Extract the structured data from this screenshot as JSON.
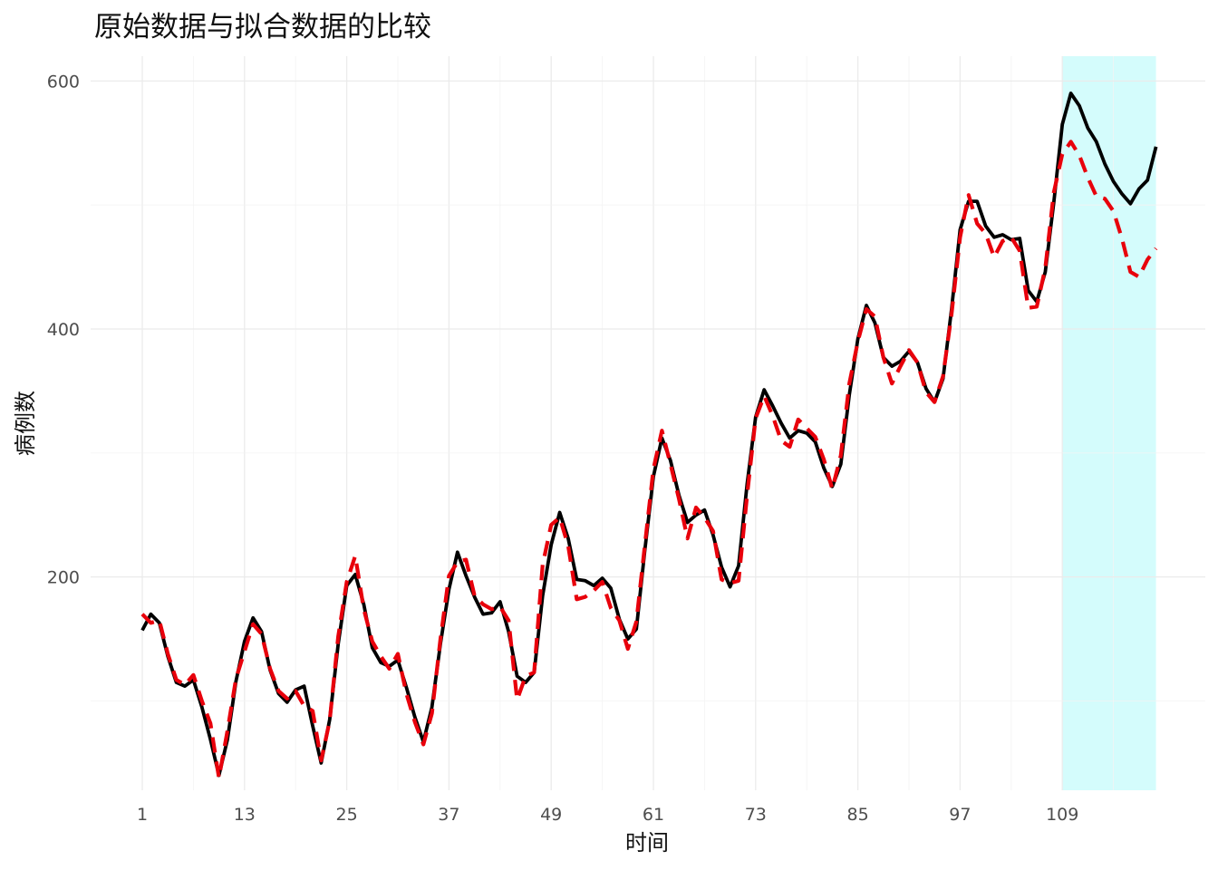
{
  "chart_data": {
    "type": "line",
    "title": "原始数据与拟合数据的比较",
    "xlabel": "时间",
    "ylabel": "病例数",
    "xlim": [
      1,
      120
    ],
    "ylim": [
      28,
      620
    ],
    "x_ticks": [
      1,
      13,
      25,
      37,
      49,
      61,
      73,
      85,
      97,
      109
    ],
    "y_ticks": [
      200,
      400,
      600
    ],
    "grid": true,
    "highlight": {
      "from": 109,
      "to": 120,
      "color": "#d4fcfc"
    },
    "x": [
      1,
      2,
      3,
      4,
      5,
      6,
      7,
      8,
      9,
      10,
      11,
      12,
      13,
      14,
      15,
      16,
      17,
      18,
      19,
      20,
      21,
      22,
      23,
      24,
      25,
      26,
      27,
      28,
      29,
      30,
      31,
      32,
      33,
      34,
      35,
      36,
      37,
      38,
      39,
      40,
      41,
      42,
      43,
      44,
      45,
      46,
      47,
      48,
      49,
      50,
      51,
      52,
      53,
      54,
      55,
      56,
      57,
      58,
      59,
      60,
      61,
      62,
      63,
      64,
      65,
      66,
      67,
      68,
      69,
      70,
      71,
      72,
      73,
      74,
      75,
      76,
      77,
      78,
      79,
      80,
      81,
      82,
      83,
      84,
      85,
      86,
      87,
      88,
      89,
      90,
      91,
      92,
      93,
      94,
      95,
      96,
      97,
      98,
      99,
      100,
      101,
      102,
      103,
      104,
      105,
      106,
      107,
      108,
      109,
      110,
      111,
      112,
      113,
      114,
      115,
      116,
      117,
      118,
      119,
      120
    ],
    "series": [
      {
        "color": "#000000",
        "dash": "solid",
        "values": [
          157,
          170,
          163,
          136,
          115,
          112,
          117,
          95,
          69,
          40,
          69,
          116,
          148,
          167,
          156,
          125,
          106,
          99,
          109,
          112,
          80,
          50,
          85,
          146,
          193,
          202,
          178,
          143,
          131,
          128,
          133,
          111,
          87,
          67,
          95,
          146,
          190,
          220,
          201,
          184,
          170,
          171,
          180,
          156,
          120,
          115,
          123,
          185,
          226,
          252,
          231,
          198,
          197,
          193,
          199,
          191,
          166,
          150,
          158,
          222,
          281,
          312,
          294,
          266,
          244,
          250,
          254,
          234,
          208,
          192,
          209,
          275,
          329,
          351,
          338,
          324,
          312,
          318,
          316,
          309,
          288,
          273,
          291,
          347,
          392,
          419,
          405,
          377,
          370,
          374,
          382,
          373,
          352,
          341,
          360,
          416,
          480,
          503,
          503,
          483,
          474,
          476,
          472,
          473,
          431,
          422,
          446,
          502,
          565,
          590,
          580,
          562,
          551,
          533,
          519,
          509,
          501,
          513,
          520,
          547
        ]
      },
      {
        "color": "#e8000b",
        "dash": "dashed",
        "values": [
          170,
          163,
          165,
          138,
          117,
          113,
          121,
          100,
          82,
          38,
          76,
          118,
          140,
          162,
          154,
          126,
          108,
          102,
          108,
          96,
          92,
          52,
          84,
          152,
          196,
          217,
          174,
          148,
          136,
          126,
          138,
          106,
          83,
          65,
          90,
          150,
          201,
          212,
          214,
          185,
          178,
          174,
          176,
          165,
          101,
          120,
          123,
          210,
          242,
          248,
          225,
          182,
          184,
          189,
          196,
          175,
          165,
          142,
          164,
          226,
          287,
          318,
          291,
          263,
          231,
          256,
          248,
          237,
          198,
          195,
          197,
          266,
          328,
          346,
          330,
          310,
          305,
          327,
          320,
          313,
          295,
          271,
          298,
          356,
          390,
          416,
          410,
          377,
          356,
          370,
          383,
          373,
          349,
          341,
          362,
          412,
          474,
          508,
          485,
          477,
          458,
          471,
          474,
          463,
          417,
          418,
          449,
          510,
          541,
          551,
          540,
          522,
          507,
          505,
          495,
          473,
          446,
          442,
          456,
          465
        ]
      }
    ]
  }
}
